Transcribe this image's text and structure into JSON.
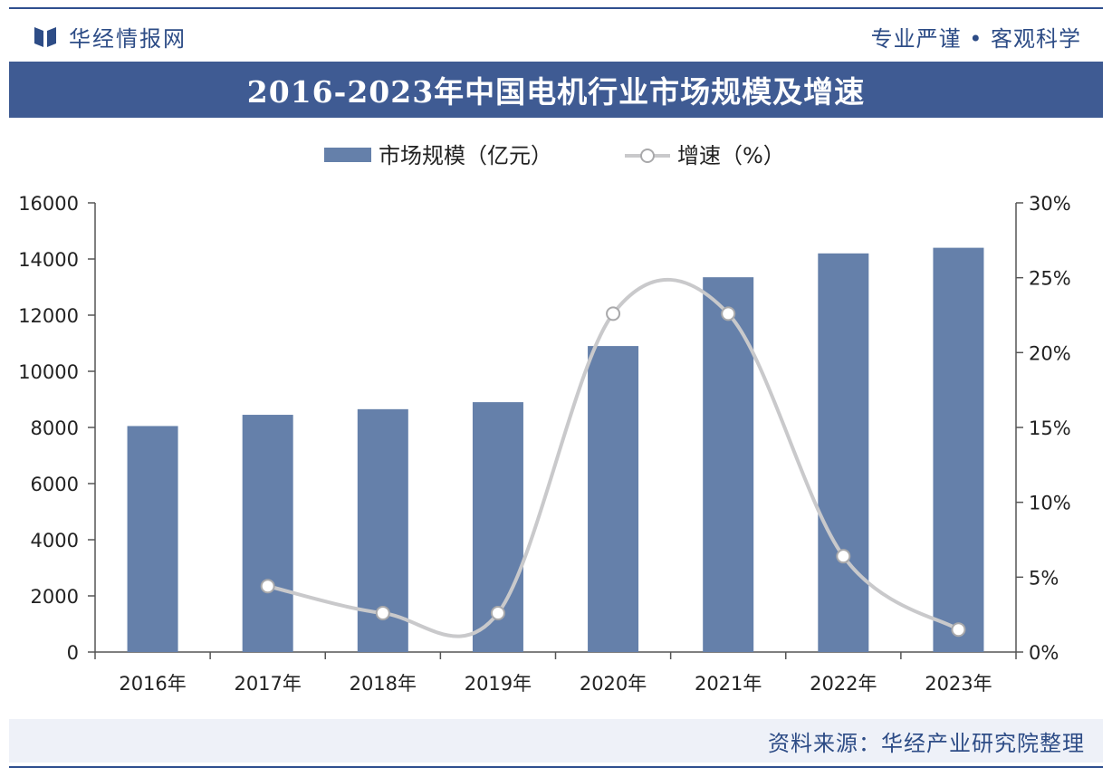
{
  "header": {
    "brand": "华经情报网",
    "motto": "专业严谨 • 客观科学",
    "title": "2016-2023年中国电机行业市场规模及增速"
  },
  "footer": {
    "source": "资料来源：华经产业研究院整理"
  },
  "colors": {
    "bar": "#6580aa",
    "line": "#c9c9cb",
    "accent": "#3f5b93"
  },
  "chart_data": {
    "type": "bar",
    "categories": [
      "2016年",
      "2017年",
      "2018年",
      "2019年",
      "2020年",
      "2021年",
      "2022年",
      "2023年"
    ],
    "series": [
      {
        "name": "市场规模（亿元）",
        "type": "bar",
        "axis": "left",
        "values": [
          8050,
          8450,
          8650,
          8900,
          10900,
          13350,
          14200,
          14400
        ]
      },
      {
        "name": "增速（%）",
        "type": "line",
        "axis": "right",
        "values": [
          null,
          4.4,
          2.6,
          2.6,
          22.6,
          22.6,
          6.4,
          1.5
        ]
      }
    ],
    "ylim_left": [
      0,
      16000
    ],
    "yticks_left": [
      "0",
      "2000",
      "4000",
      "6000",
      "8000",
      "10000",
      "12000",
      "14000",
      "16000"
    ],
    "ylim_right": [
      0,
      30
    ],
    "yticks_right": [
      "0%",
      "5%",
      "10%",
      "15%",
      "20%",
      "25%",
      "30%"
    ],
    "legend": "top-center",
    "grid": false
  }
}
